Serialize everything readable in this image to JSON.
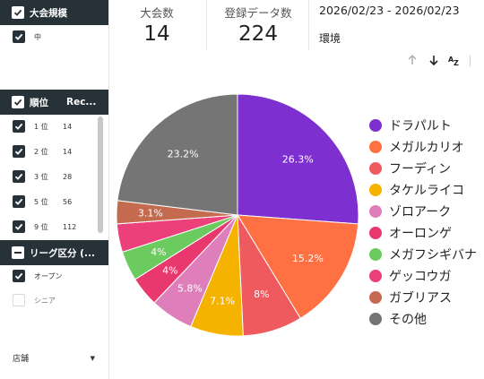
{
  "filters": {
    "size": {
      "title": "大会規模",
      "items": [
        {
          "label": "中",
          "checked": true
        }
      ]
    },
    "rank": {
      "title": "順位",
      "col2": "Rec...",
      "items": [
        {
          "label": "1 位",
          "value": "14"
        },
        {
          "label": "2 位",
          "value": "14"
        },
        {
          "label": "3 位",
          "value": "28"
        },
        {
          "label": "5 位",
          "value": "56"
        },
        {
          "label": "9 位",
          "value": "112"
        }
      ]
    },
    "league": {
      "title": "リーグ区分 (...",
      "items": [
        {
          "label": "オープン",
          "checked": true
        },
        {
          "label": "シニア",
          "checked": false
        }
      ]
    },
    "store": {
      "label": "店舗",
      "arrow": "▼"
    }
  },
  "kpis": [
    {
      "label": "大会数",
      "value": "14"
    },
    {
      "label": "登録データ数",
      "value": "224"
    }
  ],
  "date_range": "2026/02/23 - 2026/02/23",
  "environment_label": "環境",
  "toolbar_icons": [
    "arrow-up-icon",
    "arrow-down-icon",
    "sort-az-icon"
  ],
  "colors": {
    "header_bg": "#263238"
  },
  "chart_data": {
    "type": "pie",
    "title": "",
    "slices": [
      {
        "name": "ドラパルト",
        "value": 26.3,
        "label": "26.3%",
        "color": "#7E2FD0"
      },
      {
        "name": "メガルカリオ",
        "value": 15.2,
        "label": "15.2%",
        "color": "#FF7043"
      },
      {
        "name": "フーディン",
        "value": 8.0,
        "label": "8%",
        "color": "#EF5A5F"
      },
      {
        "name": "タケルライコ",
        "value": 7.1,
        "label": "7.1%",
        "color": "#F5B300"
      },
      {
        "name": "ゾロアーク",
        "value": 5.8,
        "label": "5.8%",
        "color": "#DE7FBC"
      },
      {
        "name": "オーロンゲ",
        "value": 4.0,
        "label": "4%",
        "color": "#E8386D"
      },
      {
        "name": "メガフシギバナ",
        "value": 4.0,
        "label": "4%",
        "color": "#6CCB5F"
      },
      {
        "name": "ゲッコウガ",
        "value": 3.8,
        "label": "",
        "color": "#EC407A"
      },
      {
        "name": "ガブリアス",
        "value": 3.1,
        "label": "3.1%",
        "color": "#C46A4E"
      },
      {
        "name": "その他",
        "value": 23.2,
        "label": "23.2%",
        "color": "#757575"
      }
    ],
    "legend_position": "right"
  }
}
